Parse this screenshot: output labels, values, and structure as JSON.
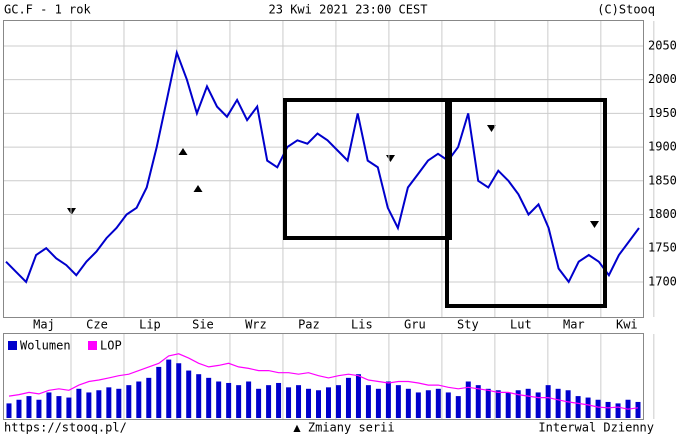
{
  "chart_data": {
    "type": "line",
    "title": "GC.F - 1 rok",
    "date": "23 Kwi 2021 23:00 CEST",
    "copyright": "(C)Stooq",
    "footer_left": "https://stooq.pl/",
    "footer_center": "▲ Zmiany serii",
    "footer_right": "Interwal Dzienny",
    "month_labels": [
      "Maj",
      "Cze",
      "Lip",
      "Sie",
      "Wrz",
      "Paz",
      "Lis",
      "Gru",
      "Sty",
      "Lut",
      "Mar",
      "Kwi"
    ],
    "ylim": [
      1648,
      2087
    ],
    "yticks": [
      1700,
      1750,
      1800,
      1850,
      1900,
      1950,
      2000,
      2050
    ],
    "grid": true,
    "series": [
      {
        "name": "GC.F",
        "color": "#0000cc",
        "values": [
          1730,
          1715,
          1700,
          1740,
          1750,
          1735,
          1725,
          1710,
          1730,
          1745,
          1765,
          1780,
          1800,
          1810,
          1840,
          1900,
          1970,
          2040,
          2000,
          1950,
          1990,
          1960,
          1945,
          1970,
          1940,
          1960,
          1880,
          1870,
          1900,
          1910,
          1905,
          1920,
          1910,
          1895,
          1880,
          1950,
          1880,
          1870,
          1810,
          1780,
          1840,
          1860,
          1880,
          1890,
          1880,
          1900,
          1950,
          1850,
          1840,
          1865,
          1850,
          1830,
          1800,
          1815,
          1780,
          1720,
          1700,
          1730,
          1740,
          1730,
          1710,
          1740,
          1760,
          1780
        ]
      }
    ],
    "lower_panel": {
      "vlim": [
        0,
        100
      ],
      "series": [
        {
          "name": "Wolumen",
          "color": "#0000cc",
          "values": [
            20,
            25,
            30,
            25,
            35,
            30,
            28,
            40,
            35,
            38,
            42,
            40,
            45,
            50,
            55,
            70,
            80,
            75,
            65,
            60,
            55,
            50,
            48,
            45,
            50,
            40,
            45,
            48,
            42,
            45,
            40,
            38,
            42,
            45,
            55,
            60,
            45,
            40,
            50,
            45,
            40,
            35,
            38,
            40,
            35,
            30,
            50,
            45,
            40,
            38,
            35,
            38,
            40,
            35,
            45,
            40,
            38,
            30,
            28,
            25,
            22,
            20,
            25,
            22
          ]
        },
        {
          "name": "LOP",
          "color": "#ff00ff",
          "values": [
            30,
            32,
            35,
            33,
            38,
            40,
            38,
            45,
            50,
            52,
            55,
            58,
            60,
            65,
            70,
            75,
            85,
            88,
            82,
            75,
            70,
            72,
            75,
            70,
            68,
            65,
            65,
            62,
            62,
            60,
            62,
            58,
            55,
            58,
            60,
            58,
            52,
            50,
            48,
            50,
            50,
            48,
            45,
            45,
            42,
            40,
            42,
            40,
            38,
            35,
            35,
            32,
            30,
            28,
            28,
            25,
            22,
            20,
            18,
            15,
            14,
            15,
            12,
            14
          ]
        }
      ]
    }
  }
}
